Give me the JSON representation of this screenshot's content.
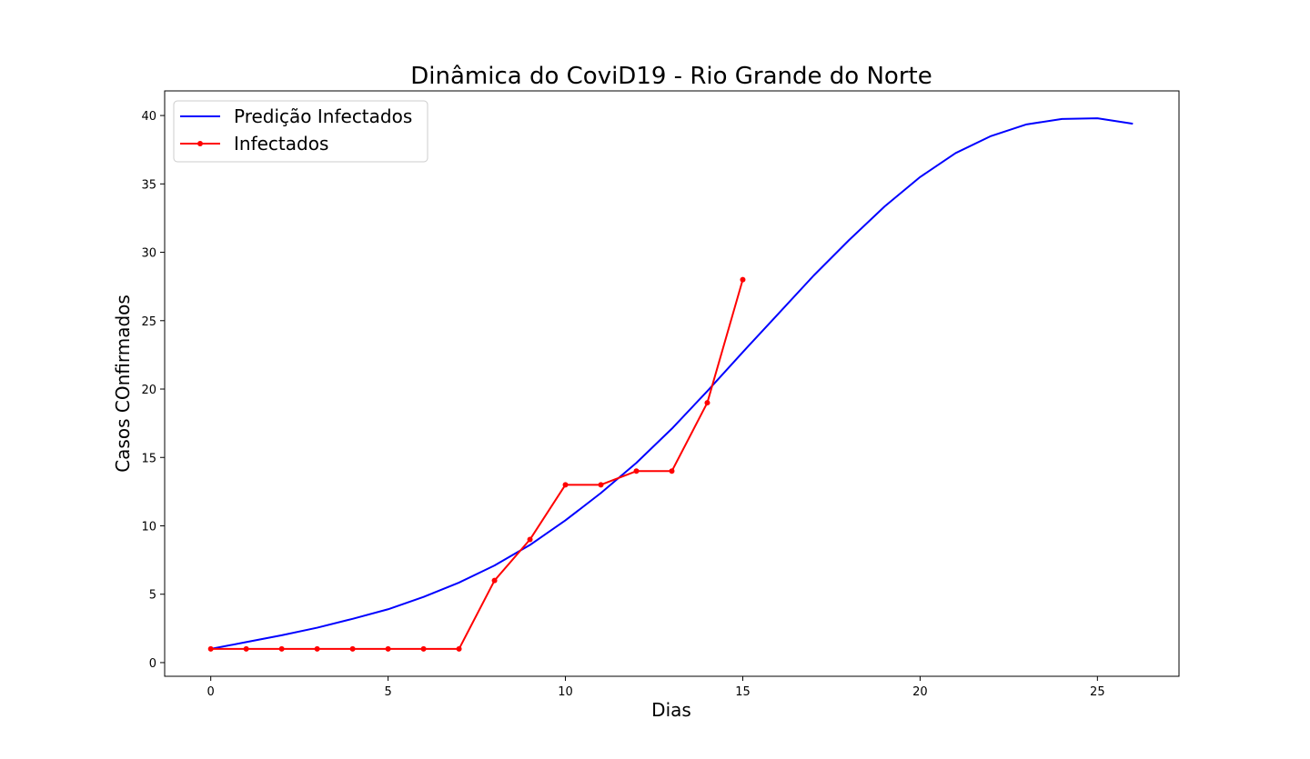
{
  "chart_data": {
    "type": "line",
    "title": "Dinâmica do CoviD19 - Rio Grande do Norte",
    "xlabel": "Dias",
    "ylabel": "Casos COnfirmados",
    "xlim": [
      -1.3,
      27.3
    ],
    "ylim": [
      -1,
      41.8
    ],
    "xticks": [
      0,
      5,
      10,
      15,
      20,
      25
    ],
    "yticks": [
      0,
      5,
      10,
      15,
      20,
      25,
      30,
      35,
      40
    ],
    "grid": false,
    "legend_position": "top-left",
    "series": [
      {
        "name": "Predição Infectados",
        "color": "#0000ff",
        "marker": false,
        "x": [
          0,
          1,
          2,
          3,
          4,
          5,
          6,
          7,
          8,
          9,
          10,
          11,
          12,
          13,
          14,
          15,
          16,
          17,
          18,
          19,
          20,
          21,
          22,
          23,
          24,
          25,
          26
        ],
        "y": [
          1.0,
          1.5,
          2.0,
          2.55,
          3.2,
          3.9,
          4.8,
          5.85,
          7.1,
          8.6,
          10.4,
          12.4,
          14.6,
          17.1,
          19.85,
          22.7,
          25.5,
          28.3,
          30.9,
          33.35,
          35.5,
          37.25,
          38.5,
          39.35,
          39.75,
          39.8,
          39.4
        ]
      },
      {
        "name": "Infectados",
        "color": "#ff0000",
        "marker": true,
        "x": [
          0,
          1,
          2,
          3,
          4,
          5,
          6,
          7,
          8,
          9,
          10,
          11,
          12,
          13,
          14,
          15
        ],
        "y": [
          1,
          1,
          1,
          1,
          1,
          1,
          1,
          1,
          6,
          9,
          13,
          13,
          14,
          14,
          19,
          28
        ]
      }
    ]
  }
}
